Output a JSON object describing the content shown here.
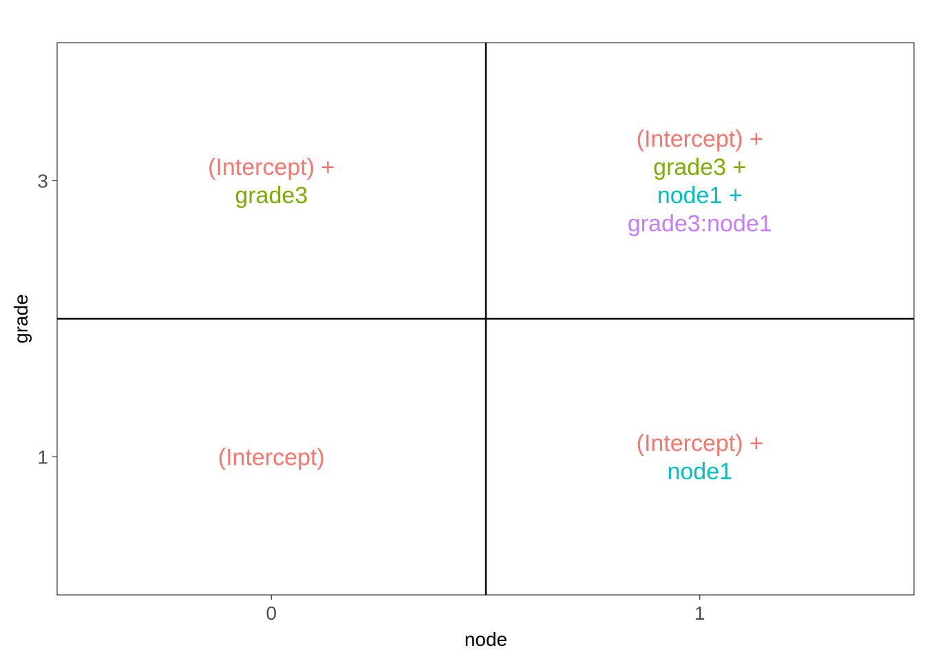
{
  "chart_data": {
    "type": "table",
    "xlabel": "node",
    "ylabel": "grade",
    "x_categories": [
      "0",
      "1"
    ],
    "y_categories": [
      "1",
      "3"
    ],
    "grid": false,
    "term_colors": {
      "(Intercept)": "#F8766D",
      "grade3": "#7CAE00",
      "node1": "#00BFC4",
      "grade3:node1": "#C77CFF"
    },
    "cells": [
      {
        "x": "0",
        "y": "3",
        "lines": [
          {
            "text": "(Intercept) +",
            "term": "(Intercept)"
          },
          {
            "text": "grade3",
            "term": "grade3"
          }
        ]
      },
      {
        "x": "1",
        "y": "3",
        "lines": [
          {
            "text": "(Intercept) +",
            "term": "(Intercept)"
          },
          {
            "text": "grade3 +",
            "term": "grade3"
          },
          {
            "text": "node1 +",
            "term": "node1"
          },
          {
            "text": "grade3:node1",
            "term": "grade3:node1"
          }
        ]
      },
      {
        "x": "0",
        "y": "1",
        "lines": [
          {
            "text": "(Intercept)",
            "term": "(Intercept)"
          }
        ]
      },
      {
        "x": "1",
        "y": "1",
        "lines": [
          {
            "text": "(Intercept) +",
            "term": "(Intercept)"
          },
          {
            "text": "node1",
            "term": "node1"
          }
        ]
      }
    ]
  }
}
